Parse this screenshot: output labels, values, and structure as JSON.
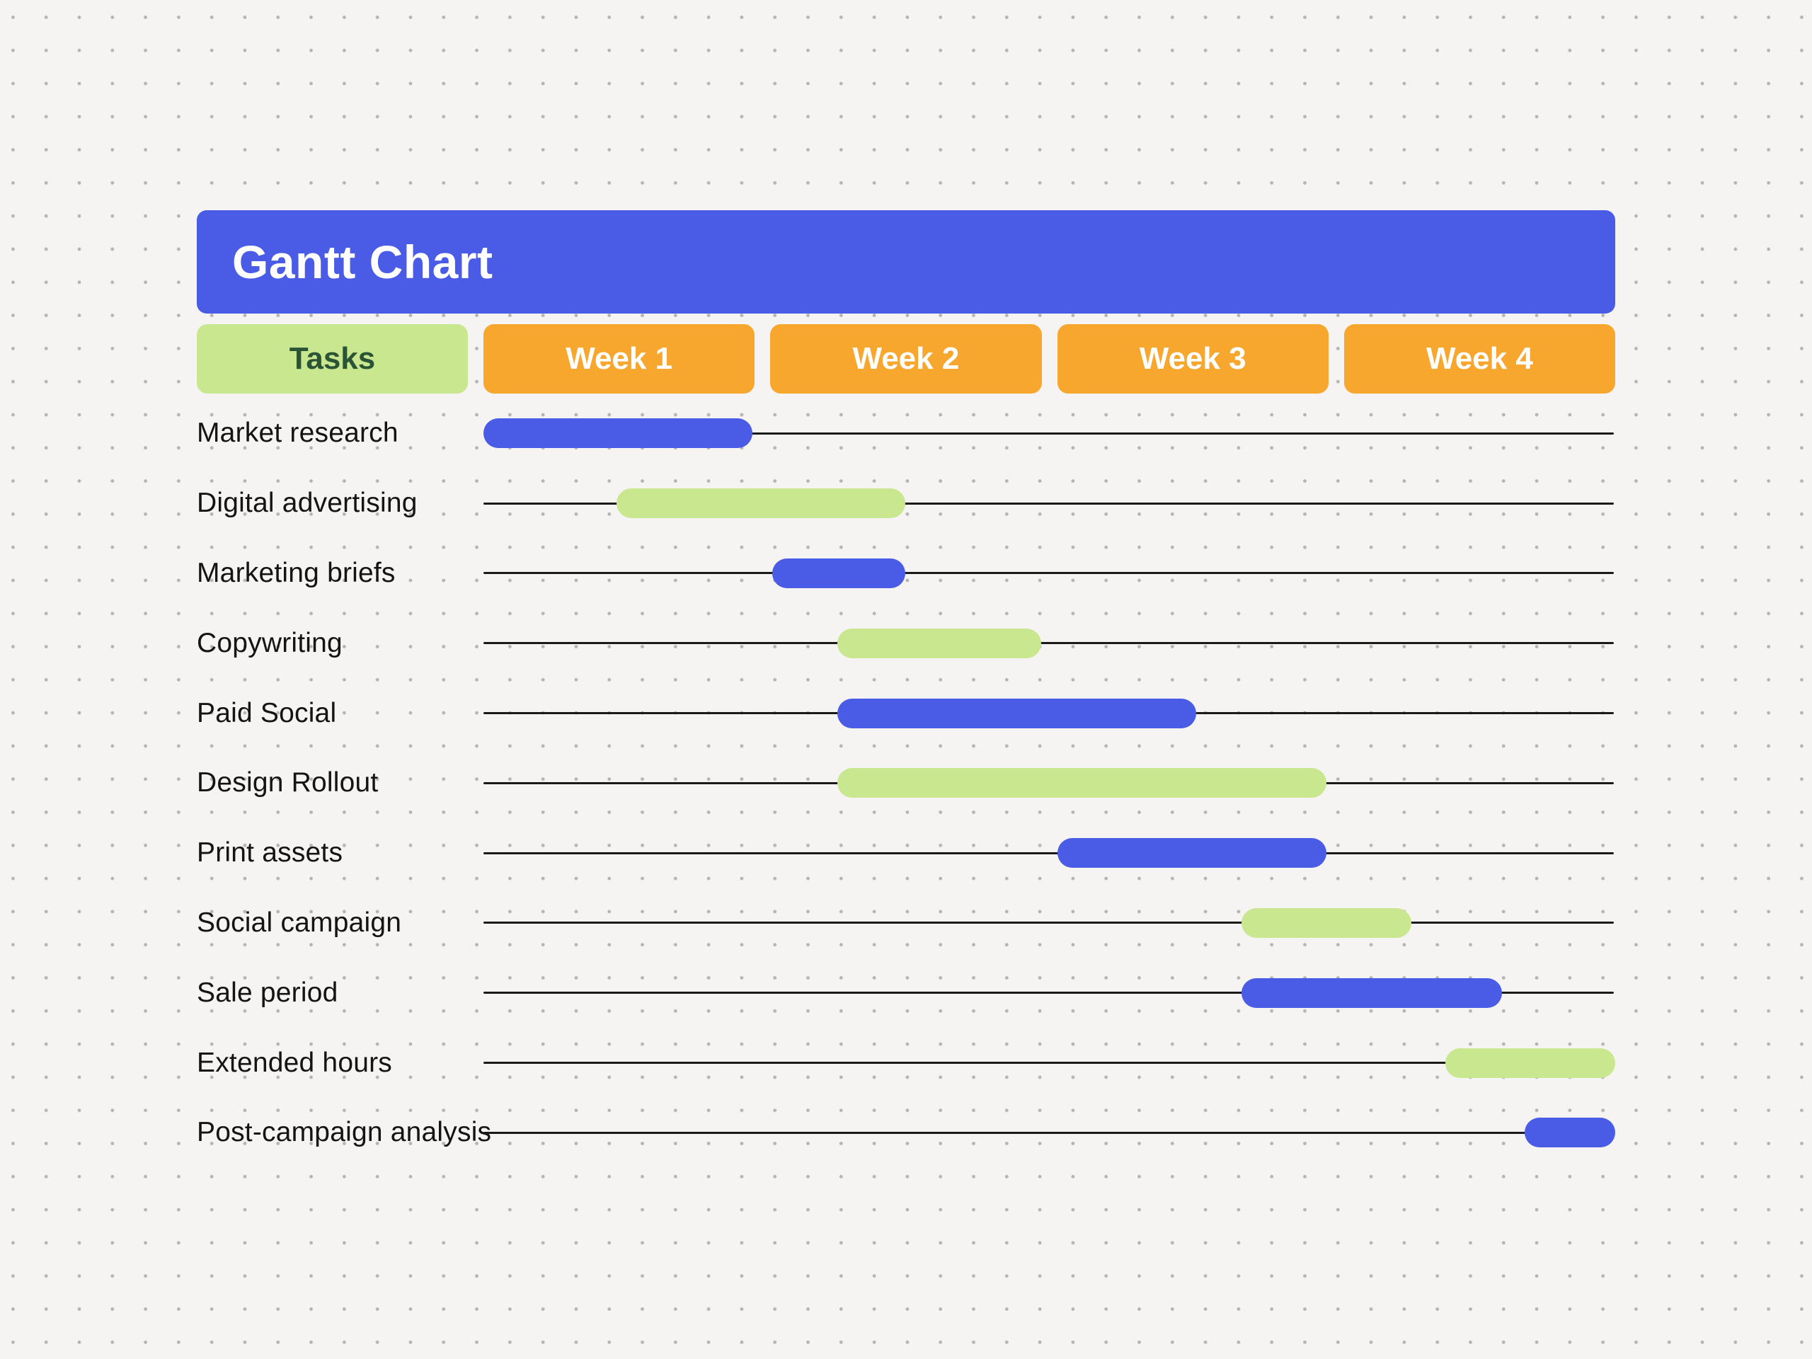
{
  "title": "Gantt Chart",
  "header": {
    "tasks_label": "Tasks",
    "weeks": [
      "Week 1",
      "Week 2",
      "Week 3",
      "Week 4"
    ]
  },
  "colors": {
    "accent_blue": "#4A5CE5",
    "accent_green": "#C9E78F",
    "accent_orange": "#F8A72E",
    "tasks_header_text": "#2B5335",
    "week_header_text": "#FFFFFF",
    "task_label_text": "#141414",
    "timeline_line": "#1A1A1A",
    "background": "#F5F4F2",
    "background_dot": "#B5B4B1"
  },
  "chart_data": {
    "type": "gantt",
    "title": "Gantt Chart",
    "x_unit": "weeks",
    "x_range": [
      0,
      4
    ],
    "columns": [
      "Week 1",
      "Week 2",
      "Week 3",
      "Week 4"
    ],
    "grid": "dotted-background",
    "tasks": [
      {
        "label": "Market research",
        "start_week": 0.0,
        "end_week": 0.95,
        "color": "blue"
      },
      {
        "label": "Digital advertising",
        "start_week": 0.47,
        "end_week": 1.49,
        "color": "green"
      },
      {
        "label": "Marketing briefs",
        "start_week": 1.02,
        "end_week": 1.49,
        "color": "blue"
      },
      {
        "label": "Copywriting",
        "start_week": 1.25,
        "end_week": 1.97,
        "color": "green"
      },
      {
        "label": "Paid Social",
        "start_week": 1.25,
        "end_week": 2.52,
        "color": "blue"
      },
      {
        "label": "Design Rollout",
        "start_week": 1.25,
        "end_week": 2.98,
        "color": "green"
      },
      {
        "label": "Print assets",
        "start_week": 2.03,
        "end_week": 2.98,
        "color": "blue"
      },
      {
        "label": "Social campaign",
        "start_week": 2.68,
        "end_week": 3.28,
        "color": "green"
      },
      {
        "label": "Sale period",
        "start_week": 2.68,
        "end_week": 3.6,
        "color": "blue"
      },
      {
        "label": "Extended hours",
        "start_week": 3.4,
        "end_week": 4.0,
        "color": "green"
      },
      {
        "label": "Post-campaign analysis",
        "start_week": 3.68,
        "end_week": 4.0,
        "color": "blue"
      }
    ]
  }
}
